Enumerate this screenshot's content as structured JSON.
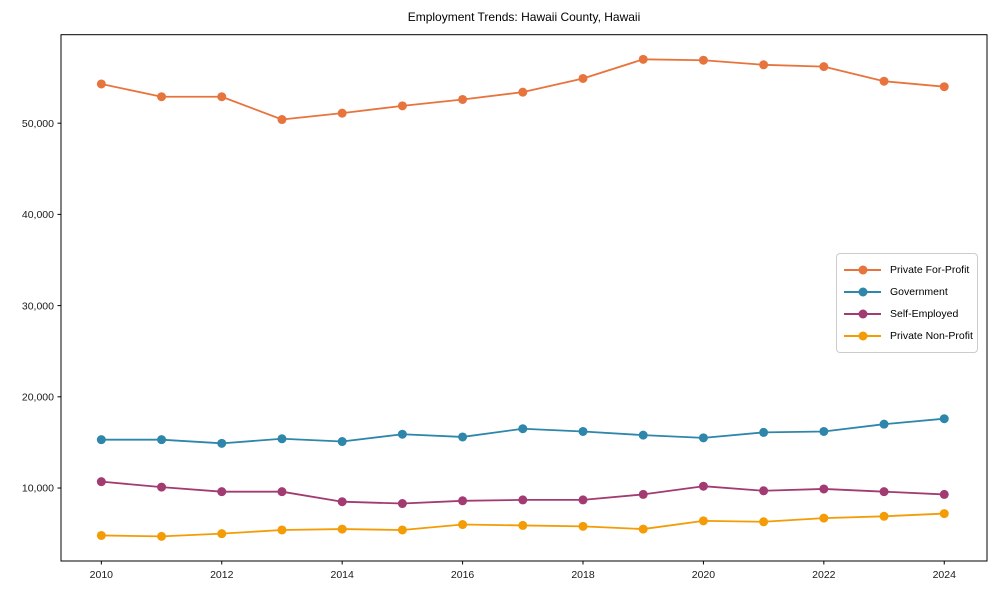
{
  "title": "Employment Trends: Hawaii County, Hawaii",
  "chart_data": {
    "type": "line",
    "title": "Employment Trends: Hawaii County, Hawaii",
    "xlabel": "",
    "ylabel": "",
    "x": [
      2010,
      2011,
      2012,
      2013,
      2014,
      2015,
      2016,
      2017,
      2018,
      2019,
      2020,
      2021,
      2022,
      2023,
      2024
    ],
    "series": [
      {
        "name": "Private For-Profit",
        "color": "#e8743d",
        "values": [
          54300,
          52900,
          52900,
          50400,
          51100,
          51900,
          52600,
          53400,
          54900,
          57000,
          56900,
          56400,
          56200,
          54600,
          54000
        ]
      },
      {
        "name": "Government",
        "color": "#2e86ab",
        "values": [
          15300,
          15300,
          14900,
          15400,
          15100,
          15900,
          15600,
          16500,
          16200,
          15800,
          15500,
          16100,
          16200,
          17000,
          17600
        ]
      },
      {
        "name": "Self-Employed",
        "color": "#a23b72",
        "values": [
          10700,
          10100,
          9600,
          9600,
          8500,
          8300,
          8600,
          8700,
          8700,
          9300,
          10200,
          9700,
          9900,
          9600,
          9300
        ]
      },
      {
        "name": "Private Non-Profit",
        "color": "#f39c05",
        "values": [
          4800,
          4700,
          5000,
          5400,
          5500,
          5400,
          6000,
          5900,
          5800,
          5500,
          6400,
          6300,
          6700,
          6900,
          7200
        ]
      }
    ],
    "x_ticks": [
      2010,
      2012,
      2014,
      2016,
      2018,
      2020,
      2022,
      2024
    ],
    "x_tick_labels": [
      "2010",
      "2012",
      "2014",
      "2016",
      "2018",
      "2020",
      "2022",
      "2024"
    ],
    "y_ticks": [
      10000,
      20000,
      30000,
      40000,
      50000
    ],
    "y_tick_labels": [
      "10,000",
      "20,000",
      "30,000",
      "40,000",
      "50,000"
    ],
    "xlim": [
      2009.33,
      2024.71
    ],
    "ylim": [
      2000,
      59700
    ],
    "grid": false,
    "legend_position": "center-right",
    "axis_color": "#000000",
    "marker": "circle",
    "marker_radius": 4.5,
    "line_width": 1.8
  }
}
